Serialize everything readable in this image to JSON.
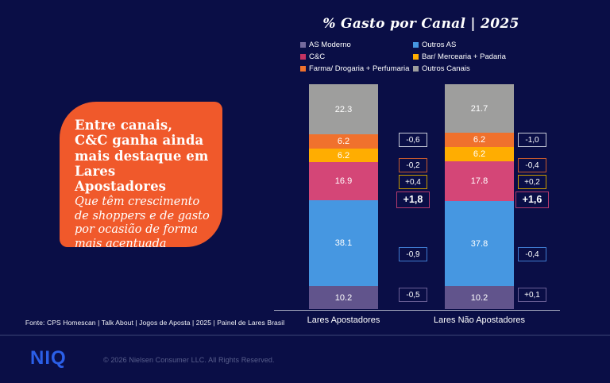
{
  "slide": {
    "background": "#0A0E46"
  },
  "callout": {
    "headline": "Entre canais, C&C ganha ainda mais destaque em Lares Apostadores",
    "subtext": "Que têm crescimento de shoppers e de gasto por ocasião de forma mais acentuada",
    "background": "#F0592B"
  },
  "chart_data": {
    "type": "bar",
    "stacked": true,
    "title": "% Gasto por Canal | 2025",
    "value_axis": {
      "unit": "% share of spend",
      "range": [
        0,
        100
      ],
      "grid": false
    },
    "legend_position": "top",
    "legend": [
      {
        "label": "AS Moderno",
        "color": "#756A9D"
      },
      {
        "label": "Outros AS",
        "color": "#4697E1"
      },
      {
        "label": "C&C",
        "color": "#C63362"
      },
      {
        "label": "Bar/ Mercearia + Padaria",
        "color": "#FFAD01"
      },
      {
        "label": "Farma/ Drogaria + Perfumaria",
        "color": "#F0712D"
      },
      {
        "label": "Outros Canais",
        "color": "#9E9E9D"
      }
    ],
    "segment_colors": {
      "Outros Canais": "#9E9E9D",
      "Farma/ Drogaria + Perfumaria": "#F0712D",
      "Bar/ Mercearia + Padaria": "#FFAD01",
      "C&C": "#D44677",
      "Outros AS": "#4697E1",
      "AS Moderno": "#61548C"
    },
    "delta_border_colors": {
      "Outros Canais": "#C6C9D8",
      "Farma/ Drogaria + Perfumaria": "#C75A2E",
      "Bar/ Mercearia + Padaria": "#C79A00",
      "C&C": "#B43A6E",
      "Outros AS": "#3F7BD0",
      "AS Moderno": "#6A5F96"
    },
    "groups": [
      {
        "label": "Lares Apostadores",
        "segments": [
          {
            "name": "Outros Canais",
            "value": 22.3,
            "display": "22.3"
          },
          {
            "name": "Farma/ Drogaria + Perfumaria",
            "value": 6.2,
            "display": "6.2"
          },
          {
            "name": "Bar/ Mercearia + Padaria",
            "value": 6.2,
            "display": "6.2"
          },
          {
            "name": "C&C",
            "value": 16.9,
            "display": "16.9"
          },
          {
            "name": "Outros AS",
            "value": 38.1,
            "display": "38.1"
          },
          {
            "name": "AS Moderno",
            "value": 10.2,
            "display": "10.2"
          }
        ],
        "deltas": [
          {
            "name": "Outros Canais",
            "display": "-0,6",
            "emphasis": false
          },
          {
            "name": "Farma/ Drogaria + Perfumaria",
            "display": "-0,2",
            "emphasis": false
          },
          {
            "name": "Bar/ Mercearia + Padaria",
            "display": "+0,4",
            "emphasis": false
          },
          {
            "name": "C&C",
            "display": "+1,8",
            "emphasis": true
          },
          {
            "name": "Outros AS",
            "display": "-0,9",
            "emphasis": false
          },
          {
            "name": "AS Moderno",
            "display": "-0,5",
            "emphasis": false
          }
        ]
      },
      {
        "label": "Lares Não Apostadores",
        "segments": [
          {
            "name": "Outros Canais",
            "value": 21.7,
            "display": "21.7"
          },
          {
            "name": "Farma/ Drogaria + Perfumaria",
            "value": 6.2,
            "display": "6.2"
          },
          {
            "name": "Bar/ Mercearia + Padaria",
            "value": 6.2,
            "display": "6.2"
          },
          {
            "name": "C&C",
            "value": 17.8,
            "display": "17.8"
          },
          {
            "name": "Outros AS",
            "value": 37.8,
            "display": "37.8"
          },
          {
            "name": "AS Moderno",
            "value": 10.2,
            "display": "10.2"
          }
        ],
        "deltas": [
          {
            "name": "Outros Canais",
            "display": "-1,0",
            "emphasis": false
          },
          {
            "name": "Farma/ Drogaria + Perfumaria",
            "display": "-0,4",
            "emphasis": false
          },
          {
            "name": "Bar/ Mercearia + Padaria",
            "display": "+0,2",
            "emphasis": false
          },
          {
            "name": "C&C",
            "display": "+1,6",
            "emphasis": true
          },
          {
            "name": "Outros AS",
            "display": "-0,4",
            "emphasis": false
          },
          {
            "name": "AS Moderno",
            "display": "+0,1",
            "emphasis": false
          }
        ]
      }
    ]
  },
  "footer": {
    "source": "Fonte: CPS Homescan | Talk About | Jogos de Aposta | 2025 | Painel de Lares Brasil",
    "logo": "NIQ",
    "copyright": "© 2026 Nielsen Consumer LLC. All Rights Reserved."
  }
}
